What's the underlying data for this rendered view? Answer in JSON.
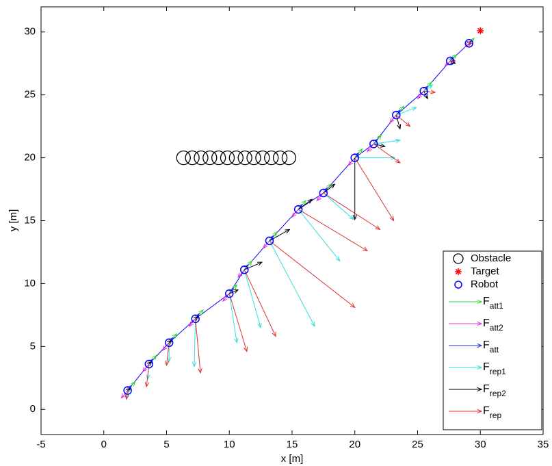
{
  "chart_data": {
    "type": "quiver",
    "xlabel": "x [m]",
    "ylabel": "y [m]",
    "xlim": [
      -5,
      35
    ],
    "ylim": [
      -2,
      32
    ],
    "xticks": [
      -5,
      0,
      5,
      10,
      15,
      20,
      25,
      30,
      35
    ],
    "yticks": [
      0,
      5,
      10,
      15,
      20,
      25,
      30
    ],
    "legend": "lower right",
    "obstacles": {
      "name": "Obstacle",
      "color": "#000000",
      "x": [
        6.35,
        7.05,
        7.75,
        8.45,
        9.15,
        9.85,
        10.55,
        11.25,
        11.95,
        12.65,
        13.35,
        14.05,
        14.75
      ],
      "y": [
        20,
        20,
        20,
        20,
        20,
        20,
        20,
        20,
        20,
        20,
        20,
        20,
        20
      ]
    },
    "target": {
      "name": "Target",
      "color": "#ff0000",
      "x": [
        30
      ],
      "y": [
        30.1
      ]
    },
    "robots": {
      "name": "Robot",
      "color": "#0000ff",
      "x": [
        1.9,
        3.6,
        5.2,
        7.3,
        10,
        11.2,
        13.2,
        15.5,
        17.5,
        20,
        21.5,
        23.3,
        25.5,
        27.6,
        29.1
      ],
      "y": [
        1.5,
        3.6,
        5.3,
        7.2,
        9.2,
        11.1,
        13.4,
        15.9,
        17.2,
        20,
        21.1,
        23.4,
        25.3,
        27.7,
        29.1
      ]
    },
    "forces": [
      {
        "name": "F",
        "subscript": "att1",
        "color": "#33dd33",
        "u": [
          0.6,
          0.6,
          0.6,
          0.6,
          0.6,
          0.6,
          0.6,
          0.6,
          0.6,
          0.6,
          0.6,
          0.6,
          0.6,
          0.5,
          0.4
        ],
        "v": [
          0.7,
          0.7,
          0.7,
          0.7,
          0.7,
          0.7,
          0.7,
          0.7,
          0.7,
          0.7,
          0.7,
          0.7,
          0.7,
          0.5,
          0.4
        ]
      },
      {
        "name": "F",
        "subscript": "att2",
        "color": "#dd33dd",
        "u": [
          -0.5,
          -0.5,
          -0.5,
          -0.5,
          -0.5,
          -0.5,
          -0.5,
          -0.5,
          -0.5,
          -0.5,
          -0.5,
          -0.5,
          -0.5,
          -0.4,
          -0.3
        ],
        "v": [
          -0.6,
          -0.6,
          -0.6,
          -0.6,
          -0.6,
          -0.6,
          -0.6,
          -0.6,
          -0.6,
          -0.6,
          -0.6,
          -0.6,
          -0.6,
          -0.4,
          -0.3
        ]
      },
      {
        "name": "F",
        "subscript": "att",
        "color": "#2233cc",
        "u": [
          0.3,
          0.3,
          0.3,
          0.3,
          0.3,
          0.3,
          0.3,
          0.3,
          0.3,
          0.3,
          0.3,
          0.3,
          0.3,
          0.2,
          0.2
        ],
        "v": [
          0.4,
          0.4,
          0.4,
          0.4,
          0.4,
          0.4,
          0.4,
          0.4,
          0.4,
          0.4,
          0.4,
          0.4,
          0.4,
          0.3,
          0.2
        ]
      },
      {
        "name": "F",
        "subscript": "rep1",
        "color": "#33dddd",
        "u": [
          -0.1,
          -0.1,
          0,
          -0.1,
          0.6,
          1.3,
          3.6,
          3.3,
          2.4,
          3.2,
          2.1,
          1.6,
          0.7,
          0.3,
          0.2
        ],
        "v": [
          -0.6,
          -1.2,
          -1.5,
          -3.8,
          -3.9,
          -4.6,
          -6.8,
          -4.1,
          -2.1,
          0,
          0.3,
          0.6,
          0.5,
          0.1,
          0
        ]
      },
      {
        "name": "F",
        "subscript": "rep2",
        "color": "#000000",
        "u": [
          0.2,
          0.2,
          0.2,
          0.2,
          0.7,
          1.4,
          1.6,
          1.1,
          0.9,
          0,
          0.9,
          0.3,
          0.3,
          0.4,
          0.2
        ],
        "v": [
          0.2,
          0.2,
          0.2,
          0.2,
          0.3,
          0.6,
          0.9,
          0.8,
          0.7,
          -4.9,
          -0.2,
          -1.1,
          -0.6,
          -0.2,
          0
        ]
      },
      {
        "name": "F",
        "subscript": "rep",
        "color": "#dd3333",
        "u": [
          -0.1,
          -0.2,
          -0.2,
          0.4,
          1.4,
          2.5,
          6.8,
          5.5,
          4.5,
          3.1,
          2.1,
          1.1,
          0.9,
          0.4,
          0.2
        ],
        "v": [
          -0.7,
          -1.8,
          -1.8,
          -4.3,
          -4.6,
          -5.3,
          -5.3,
          -3.3,
          -2.9,
          -5.0,
          -1.5,
          -0.9,
          -0.1,
          0,
          0
        ]
      }
    ]
  }
}
